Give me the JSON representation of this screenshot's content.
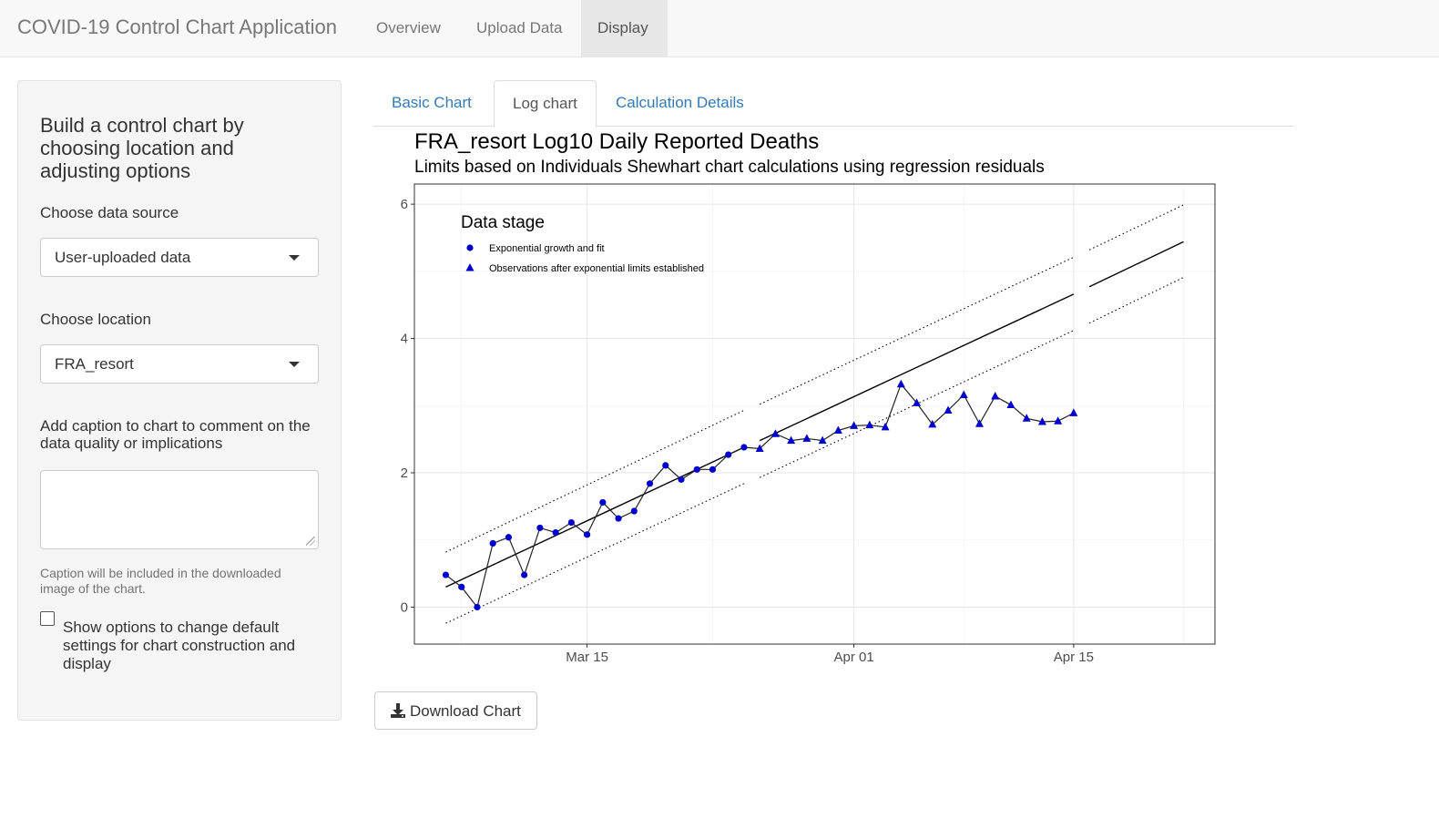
{
  "navbar": {
    "brand": "COVID-19 Control Chart Application",
    "items": [
      {
        "label": "Overview",
        "active": false
      },
      {
        "label": "Upload Data",
        "active": false
      },
      {
        "label": "Display",
        "active": true
      }
    ]
  },
  "sidebar": {
    "title": "Build a control chart by choosing location and adjusting options",
    "data_source_label": "Choose data source",
    "data_source_value": "User-uploaded data",
    "location_label": "Choose location",
    "location_value": "FRA_resort",
    "caption_label": "Add caption to chart to comment on the data quality or implications",
    "caption_value": "",
    "caption_help": "Caption will be included in the downloaded image of the chart.",
    "options_checkbox_label": "Show options to change default settings for chart construction and display",
    "options_checked": false
  },
  "tabs": [
    {
      "label": "Basic Chart",
      "active": false
    },
    {
      "label": "Log chart",
      "active": true
    },
    {
      "label": "Calculation Details",
      "active": false
    }
  ],
  "download_label": "Download Chart",
  "chart_data": {
    "type": "line",
    "title": "FRA_resort Log10 Daily Reported Deaths",
    "subtitle": "Limits based on Individuals Shewhart chart calculations using regression residuals",
    "xlabel": "",
    "ylabel": "",
    "x_ticks": [
      "Mar 15",
      "Apr 01",
      "Apr 15"
    ],
    "y_ticks": [
      0,
      2,
      4,
      6
    ],
    "ylim": [
      -0.55,
      6.3
    ],
    "xlim": [
      "2020-03-04",
      "2020-04-24"
    ],
    "grid": true,
    "legend": {
      "title": "Data stage",
      "position": "top-left",
      "entries": [
        "Exponential growth and fit",
        "Observations after exponential limits established"
      ]
    },
    "colors": {
      "points": "#0000cd",
      "line": "#000000"
    },
    "series": [
      {
        "name": "Exponential growth and fit",
        "marker": "circle",
        "x": [
          "2020-03-06",
          "2020-03-07",
          "2020-03-08",
          "2020-03-09",
          "2020-03-10",
          "2020-03-11",
          "2020-03-12",
          "2020-03-13",
          "2020-03-14",
          "2020-03-15",
          "2020-03-16",
          "2020-03-17",
          "2020-03-18",
          "2020-03-19",
          "2020-03-20",
          "2020-03-21",
          "2020-03-22",
          "2020-03-23",
          "2020-03-24",
          "2020-03-25"
        ],
        "y": [
          0.48,
          0.3,
          0.0,
          0.95,
          1.04,
          0.48,
          1.18,
          1.11,
          1.26,
          1.08,
          1.56,
          1.32,
          1.43,
          1.84,
          2.11,
          1.9,
          2.05,
          2.05,
          2.27,
          2.38
        ]
      },
      {
        "name": "Observations after exponential limits established",
        "marker": "triangle",
        "x": [
          "2020-03-26",
          "2020-03-27",
          "2020-03-28",
          "2020-03-29",
          "2020-03-30",
          "2020-03-31",
          "2020-04-01",
          "2020-04-02",
          "2020-04-03",
          "2020-04-04",
          "2020-04-05",
          "2020-04-06",
          "2020-04-07",
          "2020-04-08",
          "2020-04-09",
          "2020-04-10",
          "2020-04-11",
          "2020-04-12",
          "2020-04-13",
          "2020-04-14",
          "2020-04-15"
        ],
        "y": [
          2.36,
          2.58,
          2.48,
          2.51,
          2.48,
          2.63,
          2.7,
          2.71,
          2.68,
          3.32,
          3.04,
          2.72,
          2.93,
          3.16,
          2.73,
          3.14,
          3.01,
          2.81,
          2.76,
          2.77,
          2.89
        ]
      }
    ],
    "fit_line": {
      "segments": [
        {
          "x": [
            "2020-03-06",
            "2020-03-25"
          ],
          "y": [
            0.3,
            2.38
          ]
        },
        {
          "x": [
            "2020-03-26",
            "2020-04-15"
          ],
          "y": [
            2.48,
            4.66
          ]
        },
        {
          "x": [
            "2020-04-16",
            "2020-04-22"
          ],
          "y": [
            4.77,
            5.44
          ]
        }
      ]
    },
    "upper_limit": {
      "segments": [
        {
          "x": [
            "2020-03-06",
            "2020-03-25"
          ],
          "y": [
            0.82,
            2.93
          ]
        },
        {
          "x": [
            "2020-03-26",
            "2020-04-15"
          ],
          "y": [
            3.02,
            5.21
          ]
        },
        {
          "x": [
            "2020-04-16",
            "2020-04-22"
          ],
          "y": [
            5.32,
            5.99
          ]
        }
      ]
    },
    "lower_limit": {
      "segments": [
        {
          "x": [
            "2020-03-06",
            "2020-03-25"
          ],
          "y": [
            -0.24,
            1.84
          ]
        },
        {
          "x": [
            "2020-03-26",
            "2020-04-15"
          ],
          "y": [
            1.93,
            4.12
          ]
        },
        {
          "x": [
            "2020-04-16",
            "2020-04-22"
          ],
          "y": [
            4.23,
            4.91
          ]
        }
      ]
    }
  }
}
